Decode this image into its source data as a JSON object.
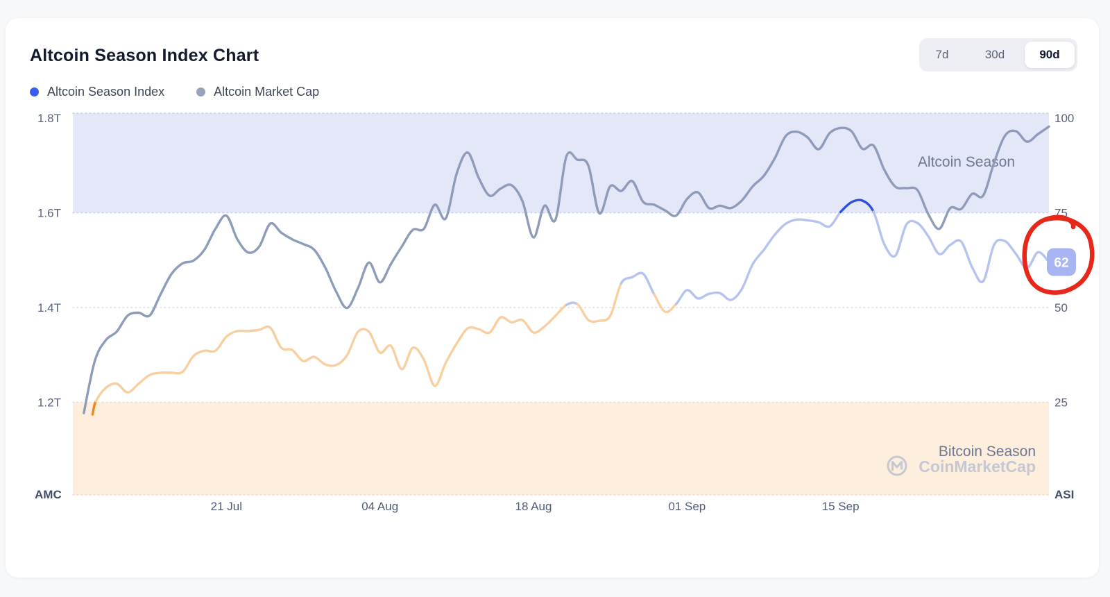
{
  "page": {
    "background": "#f7f8fa",
    "card_background": "#ffffff"
  },
  "header": {
    "title": "Altcoin Season Index Chart",
    "legend": [
      {
        "label": "Altcoin Season Index",
        "color": "#3c5cf1"
      },
      {
        "label": "Altcoin Market Cap",
        "color": "#99a4ba"
      }
    ],
    "range_selector": {
      "options": [
        "7d",
        "30d",
        "90d"
      ],
      "active": "90d"
    }
  },
  "annotations": {
    "current_value_badge": {
      "text": "62",
      "background": "#a9b5f0",
      "text_color": "#ffffff"
    },
    "red_circle": {
      "color": "#e7271a"
    },
    "watermark": {
      "brand": "CoinMarketCap",
      "color": "#c5c8d3"
    }
  },
  "chart_data": {
    "type": "line",
    "title": "Altcoin Season Index Chart",
    "x_ticks": [
      {
        "label": "21 Jul",
        "day": 14
      },
      {
        "label": "04 Aug",
        "day": 28
      },
      {
        "label": "18 Aug",
        "day": 42
      },
      {
        "label": "01 Sep",
        "day": 56
      },
      {
        "label": "15 Sep",
        "day": 70
      }
    ],
    "x_range_days": [
      0,
      89
    ],
    "y_left_axis": {
      "title": "AMC",
      "tick_labels": [
        "1.8T",
        "1.6T",
        "1.4T",
        "1.2T"
      ],
      "tick_values": [
        1.8,
        1.6,
        1.4,
        1.2
      ],
      "unit": "trillion USD"
    },
    "y_right_axis": {
      "title": "ASI",
      "tick_labels": [
        "100",
        "75",
        "50",
        "25"
      ],
      "tick_values": [
        100,
        75,
        50,
        25
      ]
    },
    "grid": "dotted-horizontal",
    "legend_position": "top-left",
    "zones": [
      {
        "label": "Altcoin Season",
        "axis": "right",
        "from": 75,
        "to": 101,
        "fill": "#e4e7f8",
        "label_color": "#6e7890"
      },
      {
        "label": "Bitcoin Season",
        "axis": "right",
        "from": 0,
        "to": 25,
        "fill": "#fdeedd",
        "label_color": "#6e7890"
      }
    ],
    "series": [
      {
        "name": "Altcoin Market Cap",
        "axis": "left",
        "color": "#8e9bb9",
        "points": [
          [
            1,
            1.177
          ],
          [
            2,
            1.287
          ],
          [
            3,
            1.331
          ],
          [
            4,
            1.349
          ],
          [
            5,
            1.383
          ],
          [
            6,
            1.389
          ],
          [
            7,
            1.383
          ],
          [
            8,
            1.428
          ],
          [
            9,
            1.471
          ],
          [
            10,
            1.493
          ],
          [
            11,
            1.499
          ],
          [
            12,
            1.522
          ],
          [
            13,
            1.566
          ],
          [
            14,
            1.594
          ],
          [
            15,
            1.544
          ],
          [
            16,
            1.516
          ],
          [
            17,
            1.529
          ],
          [
            18,
            1.577
          ],
          [
            19,
            1.558
          ],
          [
            20,
            1.544
          ],
          [
            21,
            1.534
          ],
          [
            22,
            1.522
          ],
          [
            23,
            1.485
          ],
          [
            24,
            1.434
          ],
          [
            25,
            1.399
          ],
          [
            26,
            1.441
          ],
          [
            27,
            1.495
          ],
          [
            28,
            1.453
          ],
          [
            29,
            1.492
          ],
          [
            30,
            1.529
          ],
          [
            31,
            1.564
          ],
          [
            32,
            1.566
          ],
          [
            33,
            1.617
          ],
          [
            34,
            1.588
          ],
          [
            35,
            1.683
          ],
          [
            36,
            1.727
          ],
          [
            37,
            1.674
          ],
          [
            38,
            1.636
          ],
          [
            39,
            1.651
          ],
          [
            40,
            1.658
          ],
          [
            41,
            1.624
          ],
          [
            42,
            1.548
          ],
          [
            43,
            1.615
          ],
          [
            44,
            1.585
          ],
          [
            45,
            1.719
          ],
          [
            46,
            1.712
          ],
          [
            47,
            1.7
          ],
          [
            48,
            1.599
          ],
          [
            49,
            1.656
          ],
          [
            50,
            1.646
          ],
          [
            51,
            1.667
          ],
          [
            52,
            1.623
          ],
          [
            53,
            1.617
          ],
          [
            54,
            1.605
          ],
          [
            55,
            1.594
          ],
          [
            56,
            1.629
          ],
          [
            57,
            1.643
          ],
          [
            58,
            1.61
          ],
          [
            59,
            1.615
          ],
          [
            60,
            1.61
          ],
          [
            61,
            1.626
          ],
          [
            62,
            1.656
          ],
          [
            63,
            1.678
          ],
          [
            64,
            1.715
          ],
          [
            65,
            1.762
          ],
          [
            66,
            1.771
          ],
          [
            67,
            1.759
          ],
          [
            68,
            1.734
          ],
          [
            69,
            1.768
          ],
          [
            70,
            1.779
          ],
          [
            71,
            1.772
          ],
          [
            72,
            1.735
          ],
          [
            73,
            1.742
          ],
          [
            74,
            1.69
          ],
          [
            75,
            1.655
          ],
          [
            76,
            1.652
          ],
          [
            77,
            1.648
          ],
          [
            78,
            1.597
          ],
          [
            79,
            1.566
          ],
          [
            80,
            1.61
          ],
          [
            81,
            1.608
          ],
          [
            82,
            1.64
          ],
          [
            83,
            1.636
          ],
          [
            84,
            1.706
          ],
          [
            85,
            1.763
          ],
          [
            86,
            1.772
          ],
          [
            87,
            1.75
          ],
          [
            88,
            1.766
          ],
          [
            89,
            1.782
          ]
        ]
      },
      {
        "name": "Altcoin Season Index",
        "axis": "right",
        "current_value": 62,
        "value_colors": [
          {
            "max": 25,
            "color": "#f08620"
          },
          {
            "max": 50,
            "color": "#f8cfa0"
          },
          {
            "max": 75,
            "color": "#b7c3ef"
          },
          {
            "max": 999,
            "color": "#2b50de"
          }
        ],
        "points": [
          [
            1.8,
            21.8
          ],
          [
            2.1,
            25.3
          ],
          [
            3,
            28.8
          ],
          [
            4,
            29.9
          ],
          [
            5,
            27.6
          ],
          [
            6,
            29.9
          ],
          [
            7,
            32.2
          ],
          [
            8,
            32.8
          ],
          [
            9,
            32.8
          ],
          [
            10,
            33.0
          ],
          [
            11,
            37.2
          ],
          [
            12,
            38.6
          ],
          [
            13,
            38.6
          ],
          [
            14,
            42.3
          ],
          [
            15,
            43.8
          ],
          [
            16,
            43.8
          ],
          [
            17,
            44.1
          ],
          [
            18,
            44.7
          ],
          [
            19,
            39.4
          ],
          [
            20,
            38.8
          ],
          [
            21,
            35.9
          ],
          [
            22,
            37.0
          ],
          [
            23,
            35.0
          ],
          [
            24,
            34.8
          ],
          [
            25,
            37.4
          ],
          [
            26,
            43.6
          ],
          [
            27,
            43.6
          ],
          [
            28,
            38.1
          ],
          [
            29,
            39.9
          ],
          [
            30,
            33.7
          ],
          [
            31,
            39.4
          ],
          [
            32,
            36.3
          ],
          [
            33,
            29.3
          ],
          [
            34,
            35.4
          ],
          [
            35,
            40.5
          ],
          [
            36,
            44.5
          ],
          [
            37,
            44.3
          ],
          [
            38,
            43.4
          ],
          [
            39,
            47.4
          ],
          [
            40,
            46.1
          ],
          [
            41,
            46.7
          ],
          [
            42,
            43.4
          ],
          [
            43,
            45.0
          ],
          [
            44,
            47.8
          ],
          [
            45,
            50.7
          ],
          [
            46,
            50.9
          ],
          [
            47,
            46.7
          ],
          [
            48,
            46.5
          ],
          [
            49,
            47.8
          ],
          [
            50,
            56.4
          ],
          [
            51,
            58.0
          ],
          [
            52,
            58.9
          ],
          [
            53,
            53.5
          ],
          [
            54,
            48.9
          ],
          [
            55,
            50.9
          ],
          [
            56,
            54.6
          ],
          [
            57,
            52.4
          ],
          [
            58,
            53.6
          ],
          [
            59,
            53.8
          ],
          [
            60,
            52.0
          ],
          [
            61,
            54.9
          ],
          [
            62,
            61.5
          ],
          [
            63,
            65.2
          ],
          [
            64,
            69.2
          ],
          [
            65,
            72.1
          ],
          [
            66,
            73.2
          ],
          [
            67,
            73.0
          ],
          [
            68,
            72.5
          ],
          [
            69,
            71.4
          ],
          [
            70,
            75.2
          ],
          [
            71,
            77.8
          ],
          [
            72,
            78.2
          ],
          [
            73,
            75.3
          ],
          [
            74,
            66.6
          ],
          [
            75,
            63.7
          ],
          [
            76,
            71.9
          ],
          [
            77,
            72.3
          ],
          [
            78,
            68.8
          ],
          [
            79,
            64.1
          ],
          [
            80,
            66.5
          ],
          [
            81,
            67.4
          ],
          [
            82,
            60.6
          ],
          [
            83,
            56.9
          ],
          [
            84,
            66.6
          ],
          [
            85,
            67.5
          ],
          [
            86,
            64.1
          ],
          [
            87,
            60.4
          ],
          [
            88,
            64.6
          ],
          [
            89,
            62.0
          ]
        ]
      }
    ]
  }
}
